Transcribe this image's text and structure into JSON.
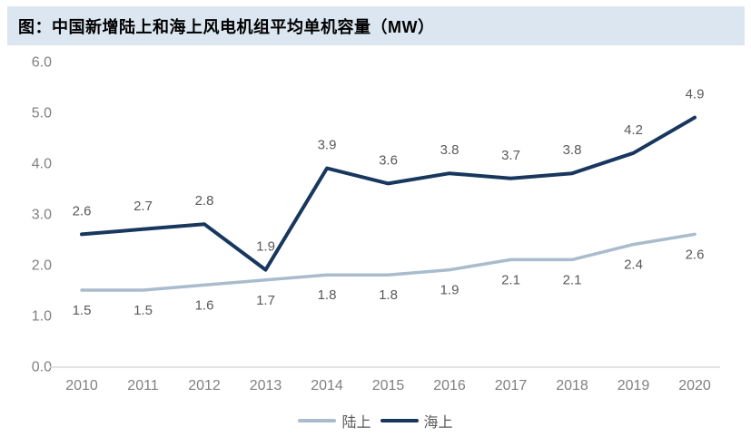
{
  "header": {
    "title": "图：中国新增陆上和海上风电机组平均单机容量（MW）",
    "background_color": "#dce6f1",
    "text_color": "#000000"
  },
  "chart_data": {
    "type": "line",
    "title": "图：中国新增陆上和海上风电机组平均单机容量（MW）",
    "categories": [
      "2010",
      "2011",
      "2012",
      "2013",
      "2014",
      "2015",
      "2016",
      "2017",
      "2018",
      "2019",
      "2020"
    ],
    "series": [
      {
        "name": "陆上",
        "color": "#a9bccd",
        "stroke_width": 3.5,
        "label_position": "below",
        "values": [
          1.5,
          1.5,
          1.6,
          1.7,
          1.8,
          1.8,
          1.9,
          2.1,
          2.1,
          2.4,
          2.6
        ]
      },
      {
        "name": "海上",
        "color": "#17375e",
        "stroke_width": 4,
        "label_position": "above",
        "values": [
          2.6,
          2.7,
          2.8,
          1.9,
          3.9,
          3.6,
          3.8,
          3.7,
          3.8,
          4.2,
          4.9
        ]
      }
    ],
    "ylim": [
      0.0,
      6.0
    ],
    "ytick_labels": [
      "0.0",
      "1.0",
      "2.0",
      "3.0",
      "4.0",
      "5.0",
      "6.0"
    ],
    "xlabel": "",
    "ylabel": "",
    "grid": false,
    "legend_position": "bottom",
    "colors": {
      "axis_line": "#d9d9d9",
      "tick_label": "#808080",
      "data_label": "#595959",
      "legend_label": "#595959"
    }
  }
}
